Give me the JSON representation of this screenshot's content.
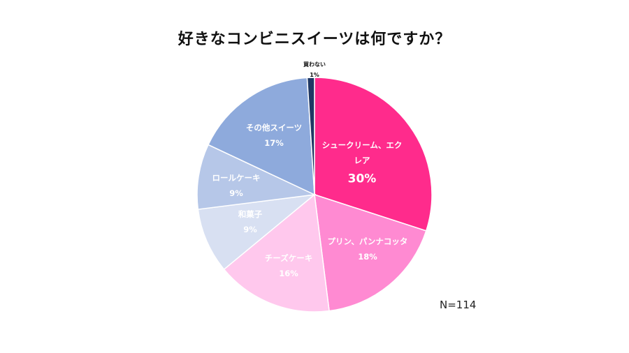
{
  "chart_data": {
    "type": "pie",
    "title": "好きなコンビニスイーツは何ですか？",
    "start_angle_deg": 0,
    "direction": "clockwise",
    "slices": [
      {
        "label": "シュークリーム、エクレア",
        "label_lines": [
          "シュークリーム、エク",
          "レア"
        ],
        "value": 30,
        "display": "30%",
        "color": "#ff2b8c",
        "text_color": "#ffffff"
      },
      {
        "label": "プリン、パンナコッタ",
        "label_lines": [
          "プリン、パンナコッタ"
        ],
        "value": 18,
        "display": "18%",
        "color": "#ff8ad2",
        "text_color": "#ffffff"
      },
      {
        "label": "チーズケーキ",
        "label_lines": [
          "チーズケーキ"
        ],
        "value": 16,
        "display": "16%",
        "color": "#ffc8ed",
        "text_color": "#ffffff"
      },
      {
        "label": "和菓子",
        "label_lines": [
          "和菓子"
        ],
        "value": 9,
        "display": "9%",
        "color": "#d8e0f2",
        "text_color": "#ffffff"
      },
      {
        "label": "ロールケーキ",
        "label_lines": [
          "ロールケーキ"
        ],
        "value": 9,
        "display": "9%",
        "color": "#b6c7e8",
        "text_color": "#ffffff"
      },
      {
        "label": "その他スイーツ",
        "label_lines": [
          "その他スイーツ"
        ],
        "value": 17,
        "display": "17%",
        "color": "#8eaadc",
        "text_color": "#ffffff"
      },
      {
        "label": "買わない",
        "label_lines": [
          "買わない"
        ],
        "value": 1,
        "display": "1%",
        "color": "#1f3864",
        "text_color": "#111111"
      }
    ],
    "sample_size": "N=114"
  }
}
